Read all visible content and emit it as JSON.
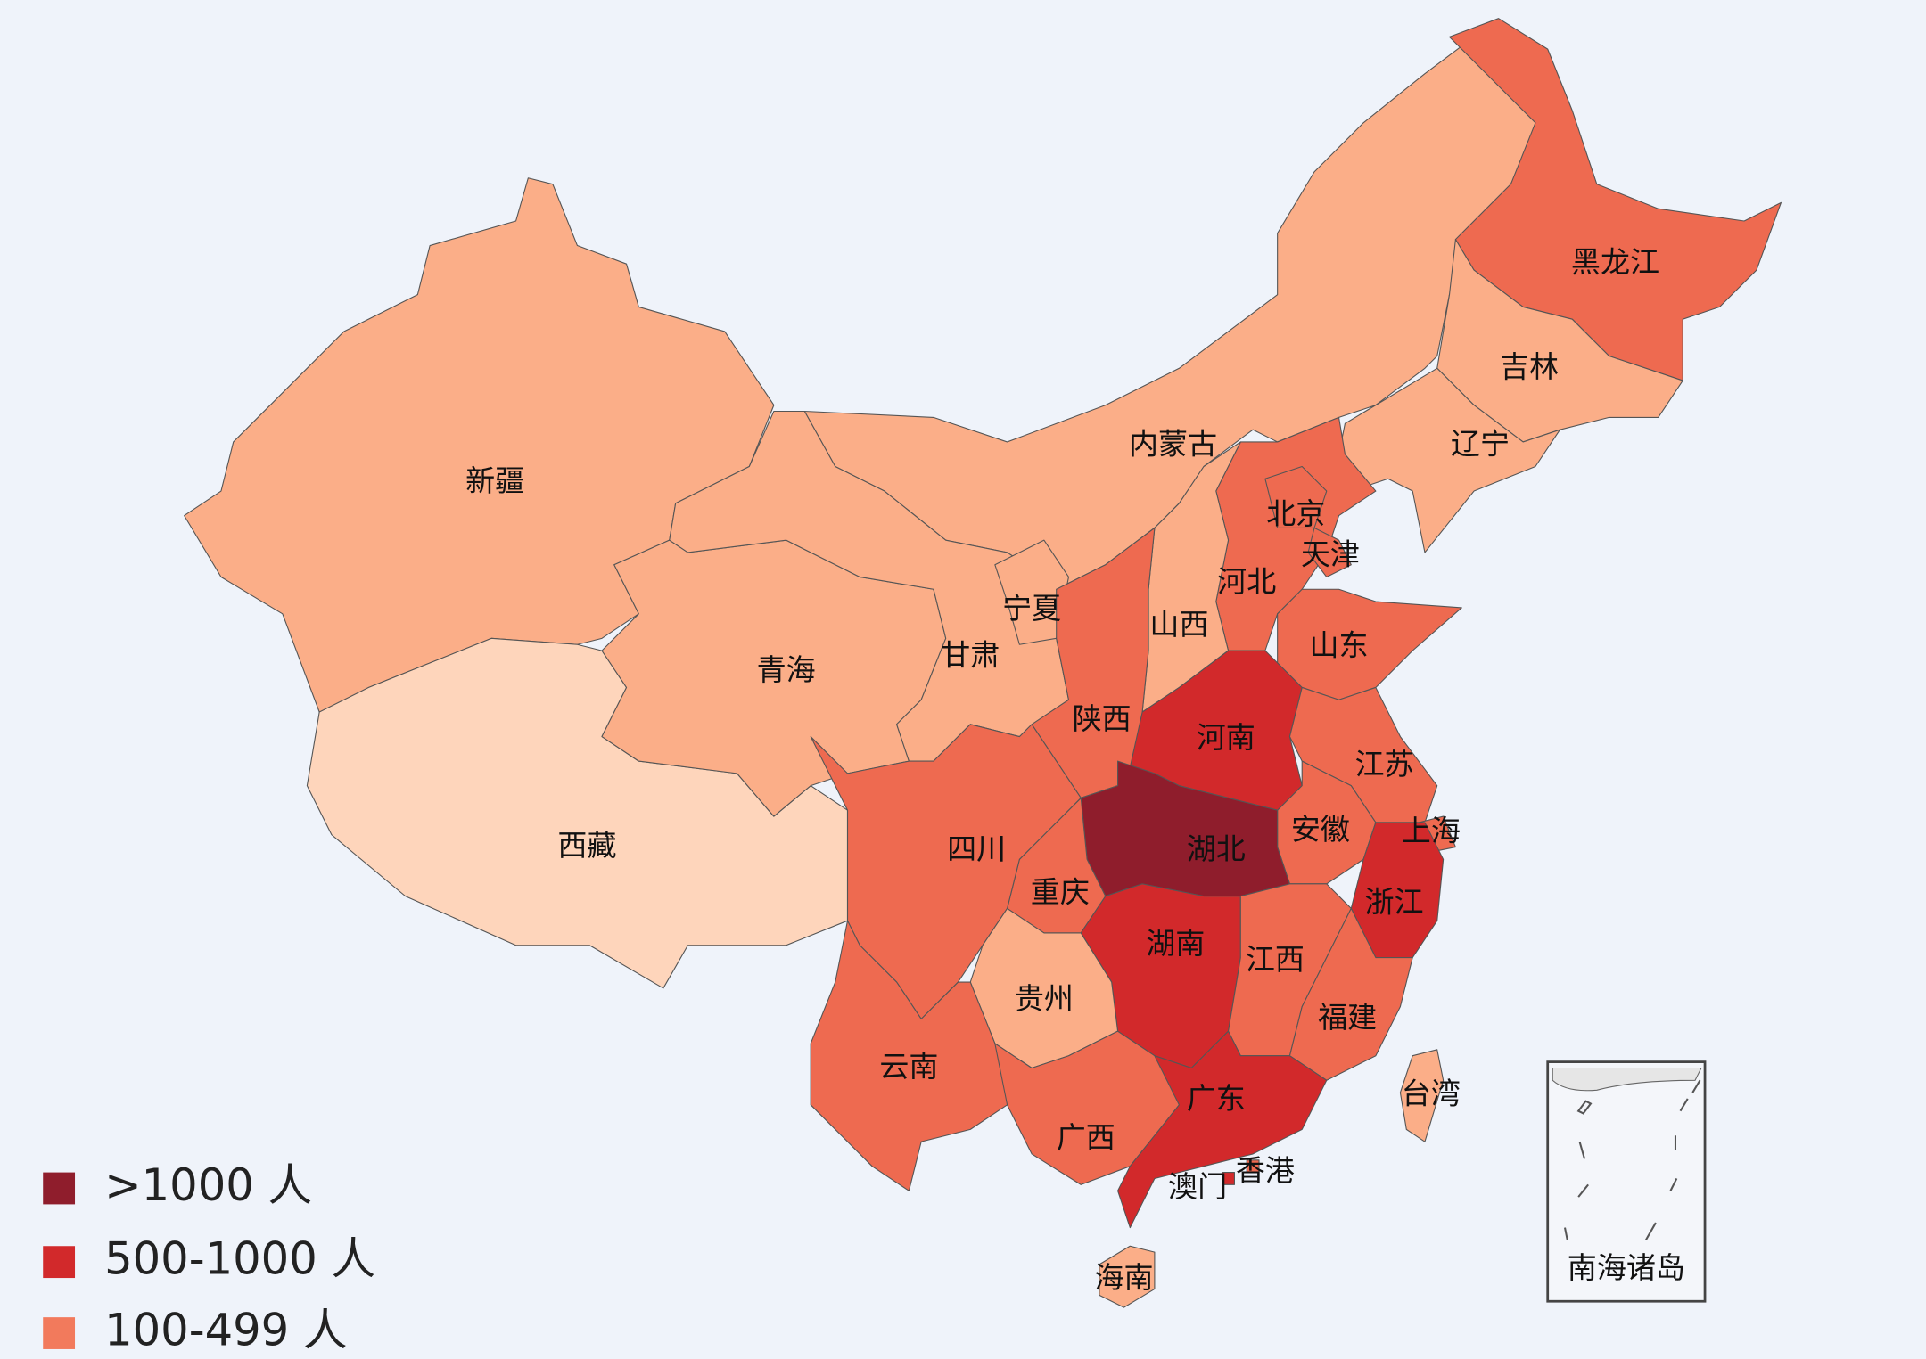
{
  "regions": [
    {
      "name": "新疆",
      "color": "#fbae88"
    },
    {
      "name": "西藏",
      "color": "#fed5bb"
    },
    {
      "name": "青海",
      "color": "#fbae88"
    },
    {
      "name": "内蒙古",
      "color": "#fbae88"
    },
    {
      "name": "甘肃",
      "color": "#fbae88"
    },
    {
      "name": "宁夏",
      "color": "#fbae88"
    },
    {
      "name": "黑龙江",
      "color": "#ee6a50"
    },
    {
      "name": "吉林",
      "color": "#fbae88"
    },
    {
      "name": "辽宁",
      "color": "#fbae88"
    },
    {
      "name": "河北",
      "color": "#ee6a50"
    },
    {
      "name": "北京",
      "color": "#ee6a50"
    },
    {
      "name": "天津",
      "color": "#ee6a50"
    },
    {
      "name": "山西",
      "color": "#fbae88"
    },
    {
      "name": "陕西",
      "color": "#ee6a50"
    },
    {
      "name": "山东",
      "color": "#ee6a50"
    },
    {
      "name": "河南",
      "color": "#d2292b"
    },
    {
      "name": "江苏",
      "color": "#ee6a50"
    },
    {
      "name": "安徽",
      "color": "#ee6a50"
    },
    {
      "name": "上海",
      "color": "#ee6a50"
    },
    {
      "name": "浙江",
      "color": "#d2292b"
    },
    {
      "name": "湖北",
      "color": "#8f1d2c"
    },
    {
      "name": "重庆",
      "color": "#ee6a50"
    },
    {
      "name": "四川",
      "color": "#ee6a50"
    },
    {
      "name": "湖南",
      "color": "#d2292b"
    },
    {
      "name": "江西",
      "color": "#ee6a50"
    },
    {
      "name": "福建",
      "color": "#ee6a50"
    },
    {
      "name": "贵州",
      "color": "#fbae88"
    },
    {
      "name": "云南",
      "color": "#ee6a50"
    },
    {
      "name": "广西",
      "color": "#ee6a50"
    },
    {
      "name": "广东",
      "color": "#d2292b"
    },
    {
      "name": "香港",
      "color": "#ee6a50"
    },
    {
      "name": "澳门",
      "color": "#d2292b"
    },
    {
      "name": "海南",
      "color": "#fbae88"
    },
    {
      "name": "台湾",
      "color": "#fbae88"
    }
  ],
  "inset": {
    "label": "南海诸岛"
  },
  "legend": [
    {
      "label": ">1000 人",
      "color": "#8f1d2c"
    },
    {
      "label": "500-1000 人",
      "color": "#d2292b"
    },
    {
      "label": "100-499 人",
      "color": "#f27a5c"
    }
  ]
}
